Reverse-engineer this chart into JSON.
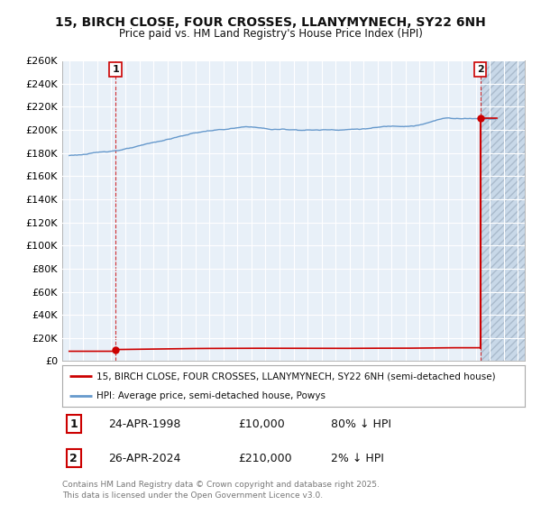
{
  "title": "15, BIRCH CLOSE, FOUR CROSSES, LLANYMYNECH, SY22 6NH",
  "subtitle": "Price paid vs. HM Land Registry's House Price Index (HPI)",
  "ylim": [
    0,
    260000
  ],
  "yticks": [
    0,
    20000,
    40000,
    60000,
    80000,
    100000,
    120000,
    140000,
    160000,
    180000,
    200000,
    220000,
    240000,
    260000
  ],
  "ytick_labels": [
    "£0",
    "£20K",
    "£40K",
    "£60K",
    "£80K",
    "£100K",
    "£120K",
    "£140K",
    "£160K",
    "£180K",
    "£200K",
    "£220K",
    "£240K",
    "£260K"
  ],
  "xlim_start": 1994.5,
  "xlim_end": 2027.5,
  "hpi_color": "#6699cc",
  "price_color": "#cc0000",
  "sale1_x": 1998.3,
  "sale1_y": 10000,
  "sale1_label": "1",
  "sale2_x": 2024.32,
  "sale2_y": 210000,
  "sale2_label": "2",
  "annotation_box_color": "#cc0000",
  "legend_label_red": "15, BIRCH CLOSE, FOUR CROSSES, LLANYMYNECH, SY22 6NH (semi-detached house)",
  "legend_label_blue": "HPI: Average price, semi-detached house, Powys",
  "table_row1": [
    "1",
    "24-APR-1998",
    "£10,000",
    "80% ↓ HPI"
  ],
  "table_row2": [
    "2",
    "26-APR-2024",
    "£210,000",
    "2% ↓ HPI"
  ],
  "footer": "Contains HM Land Registry data © Crown copyright and database right 2025.\nThis data is licensed under the Open Government Licence v3.0.",
  "bg_color": "#ffffff",
  "chart_bg_color": "#e8f0f8",
  "grid_color": "#ffffff",
  "future_cutoff": 2024.32,
  "chart_end": 2025.5
}
